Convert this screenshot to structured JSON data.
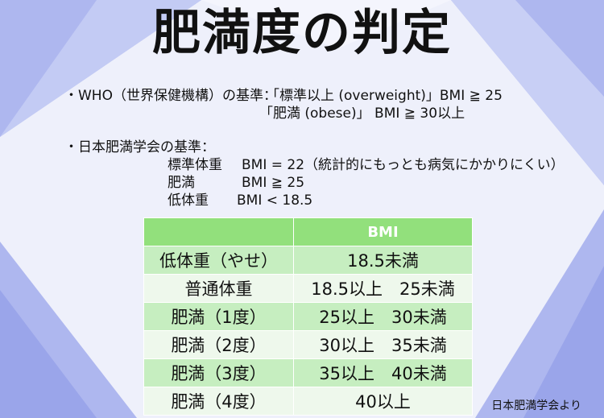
{
  "title": "肥満度の判定",
  "who": {
    "heading": "・WHO（世界保健機構）の基準：",
    "line1": "「標準以上 (overweight)」BMI ≧ 25",
    "line2": "「肥満 (obese)」 BMI ≧ 30以上"
  },
  "japan": {
    "heading": "・日本肥満学会の基準：",
    "rows": [
      {
        "label": "標準体重",
        "value": "BMI = 22（統計的にもっとも病気にかかりにくい）"
      },
      {
        "label": "肥満",
        "value": "BMI ≧ 25"
      },
      {
        "label": "低体重",
        "value": "BMI < 18.5"
      }
    ]
  },
  "table": {
    "header": [
      "",
      "BMI"
    ],
    "rows": [
      [
        "低体重（やせ）",
        "18.5未満"
      ],
      [
        "普通体重",
        "18.5以上　25未満"
      ],
      [
        "肥満（1度）",
        "25以上　30未満"
      ],
      [
        "肥満（2度）",
        "30以上　35未満"
      ],
      [
        "肥満（3度）",
        "35以上　40未満"
      ],
      [
        "肥満（4度）",
        "40以上"
      ]
    ]
  },
  "source": "日本肥満学会より",
  "colors": {
    "header_green": "#92e07c",
    "row_green": "#c6eec0",
    "row_light": "#eef8ec",
    "bg_blue": "#aab4ee"
  }
}
